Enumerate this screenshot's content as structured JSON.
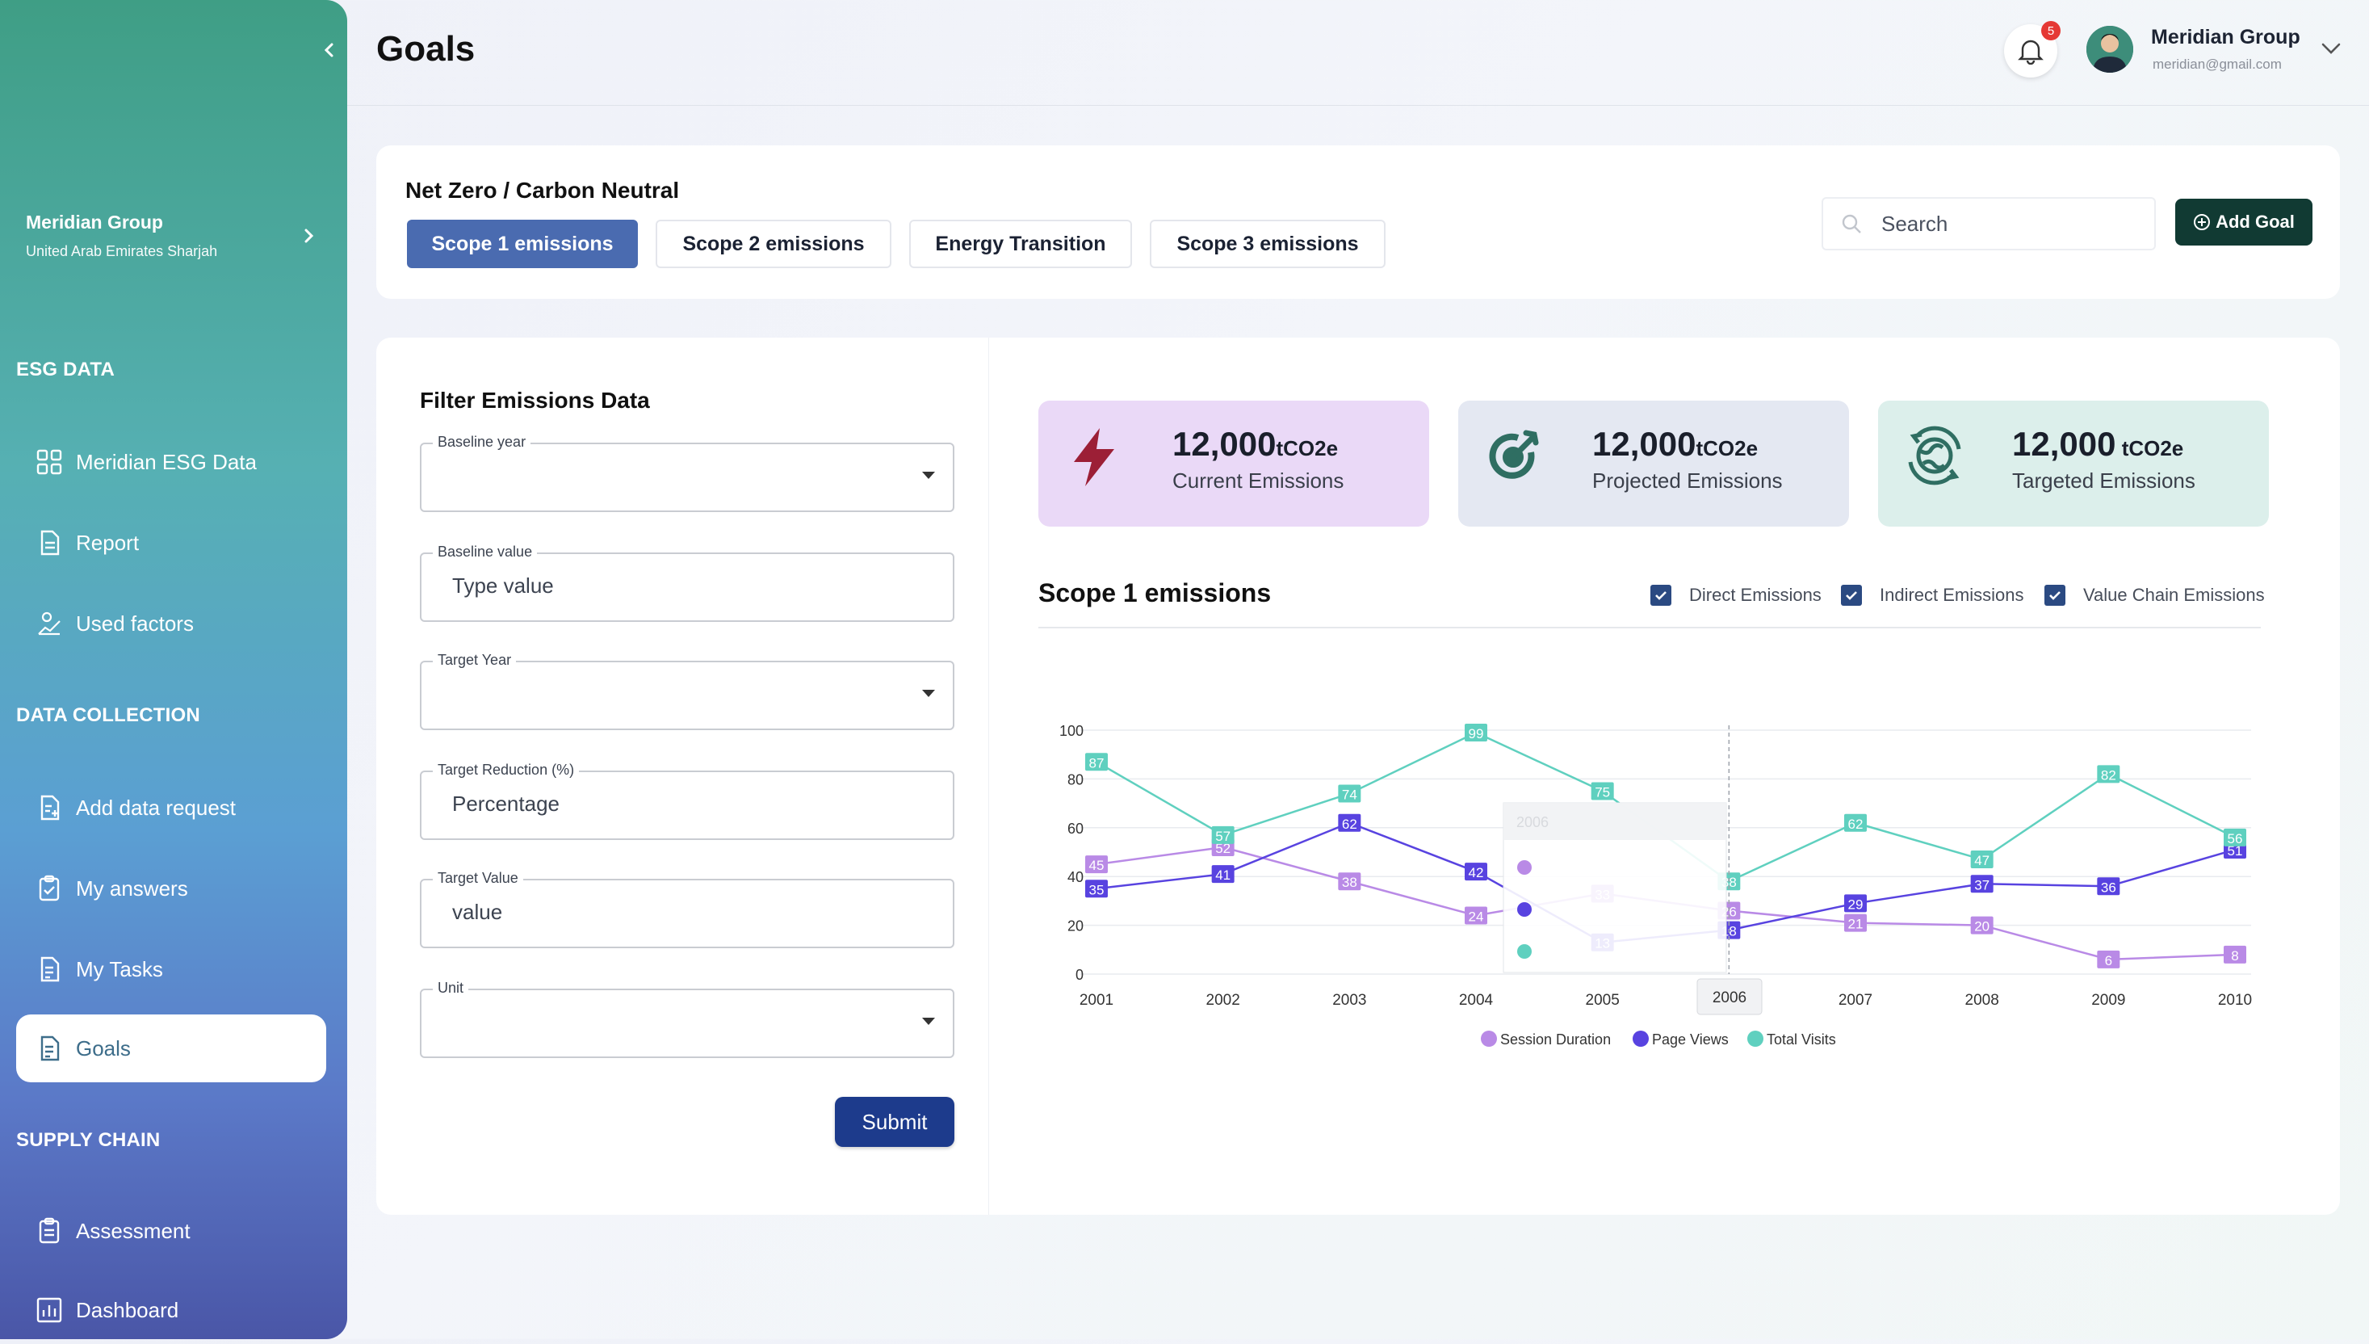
{
  "sidebar": {
    "org_name": "Meridian Group",
    "org_location": "United Arab Emirates Sharjah",
    "sections": [
      {
        "title": "ESG DATA",
        "items": [
          "Meridian ESG Data",
          "Report",
          "Used factors"
        ]
      },
      {
        "title": "DATA COLLECTION",
        "items": [
          "Add data request",
          "My answers",
          "My Tasks",
          "Goals"
        ]
      },
      {
        "title": "SUPPLY CHAIN",
        "items": [
          "Assessment",
          "Dashboard"
        ]
      }
    ],
    "active_item": "Goals"
  },
  "header": {
    "title": "Goals",
    "notification_count": "5",
    "user_name": "Meridian Group",
    "user_email": "meridian@gmail.com"
  },
  "goals_bar": {
    "title": "Net Zero / Carbon Neutral",
    "tabs": [
      "Scope 1 emissions",
      "Scope 2 emissions",
      "Energy Transition",
      "Scope 3 emissions"
    ],
    "active_tab": "Scope 1 emissions",
    "search_placeholder": "Search",
    "add_goal_label": "Add Goal"
  },
  "filter": {
    "title": "Filter Emissions Data",
    "fields": [
      {
        "label": "Baseline year",
        "value": "",
        "type": "select"
      },
      {
        "label": "Baseline value",
        "value": "Type value",
        "type": "input"
      },
      {
        "label": "Target Year",
        "value": "",
        "type": "select"
      },
      {
        "label": "Target Reduction (%)",
        "value": "Percentage",
        "type": "input"
      },
      {
        "label": "Target Value",
        "value": "value",
        "type": "input"
      },
      {
        "label": "Unit",
        "value": "",
        "type": "select"
      }
    ],
    "submit_label": "Submit"
  },
  "stats": [
    {
      "value": "12,000",
      "unit": "tCO2e",
      "label": "Current Emissions",
      "bg": "#ead9f7",
      "icon": "lightning-icon",
      "icon_color": "#9c1f36"
    },
    {
      "value": "12,000",
      "unit": "tCO2e",
      "label": "Projected Emissions",
      "bg": "#e4e8f2",
      "icon": "target-icon",
      "icon_color": "#2f6e62"
    },
    {
      "value": "12,000",
      "unit": " tCO2e",
      "label": "Targeted Emissions",
      "bg": "#dcefeb",
      "icon": "globe-cycle-icon",
      "icon_color": "#2f6e62"
    }
  ],
  "chart_section": {
    "title": "Scope 1 emissions",
    "filters": [
      "Direct Emissions",
      "Indirect Emissions",
      "Value Chain Emissions"
    ],
    "filter_color": "#2b4a82"
  },
  "chart_data": {
    "type": "line",
    "x": [
      "2001",
      "2002",
      "2003",
      "2004",
      "2005",
      "2006",
      "2007",
      "2008",
      "2009",
      "2010"
    ],
    "ylim": [
      0,
      100
    ],
    "yticks": [
      0,
      20,
      40,
      60,
      80,
      100
    ],
    "series": [
      {
        "name": "Session Duration",
        "color": "#b98ae6",
        "values": [
          45,
          52,
          38,
          24,
          33,
          26,
          21,
          20,
          6,
          8
        ]
      },
      {
        "name": "Page Views",
        "color": "#5843e0",
        "values": [
          35,
          41,
          62,
          42,
          13,
          18,
          29,
          37,
          36,
          51
        ]
      },
      {
        "name": "Total Visits",
        "color": "#5fd0bf",
        "values": [
          87,
          57,
          74,
          99,
          75,
          38,
          62,
          47,
          82,
          56
        ]
      }
    ],
    "tooltip": {
      "x": "2006",
      "hover_label": "2006"
    }
  }
}
